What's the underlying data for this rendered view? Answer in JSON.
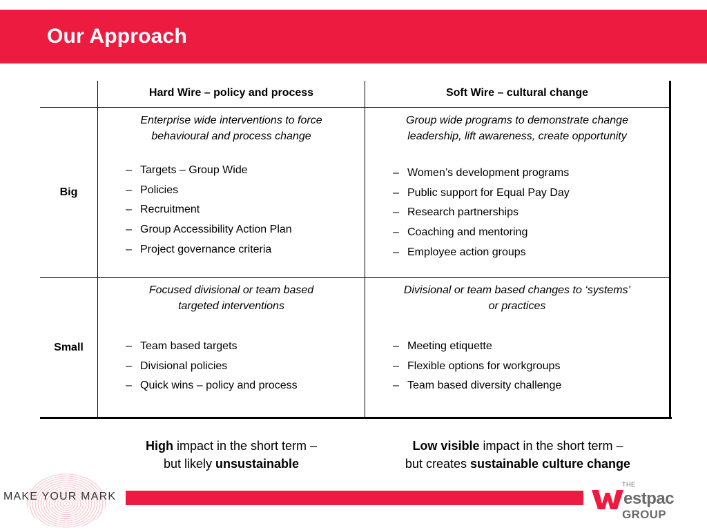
{
  "page_title": "Our Approach",
  "table": {
    "columns": [
      "Hard Wire – policy and process",
      "Soft Wire – cultural change"
    ],
    "rows": [
      {
        "label": "Big",
        "hard": {
          "intro": [
            "Enterprise wide interventions to force",
            "behavioural and process change"
          ],
          "items": [
            "Targets – Group Wide",
            "Policies",
            "Recruitment",
            "Group Accessibility Action Plan",
            "Project governance criteria"
          ]
        },
        "soft": {
          "intro": [
            "Group wide programs to demonstrate change",
            "leadership, lift awareness, create opportunity"
          ],
          "items": [
            "Women’s development programs",
            "Public support for Equal Pay Day",
            "Research partnerships",
            "Coaching and mentoring",
            "Employee action groups"
          ]
        }
      },
      {
        "label": "Small",
        "hard": {
          "intro": [
            "Focused divisional or team based",
            "targeted interventions"
          ],
          "items": [
            "Team based targets",
            "Divisional policies",
            "Quick wins – policy and process"
          ]
        },
        "soft": {
          "intro": [
            "Divisional or team based changes to ‘systems’",
            "or practices"
          ],
          "items": [
            "Meeting etiquette",
            "Flexible options for workgroups",
            "Team based diversity challenge"
          ]
        }
      }
    ]
  },
  "impact": {
    "hard": {
      "line1_bold": "High",
      "line1_rest": " impact in the short term –",
      "line2_pre": "but likely ",
      "line2_bold": "unsustainable"
    },
    "soft": {
      "line1_bold": "Low visible",
      "line1_rest": " impact in the short term –",
      "line2_pre": "but creates ",
      "line2_bold": "sustainable culture change"
    }
  },
  "footer": {
    "tagline": "MAKE YOUR MARK",
    "logo_the": "THE",
    "logo_w": "W",
    "logo_name": "estpac",
    "logo_group": "GROUP"
  },
  "colors": {
    "accent": "#ee1b40",
    "logo_grey": "#6b6b6b"
  }
}
